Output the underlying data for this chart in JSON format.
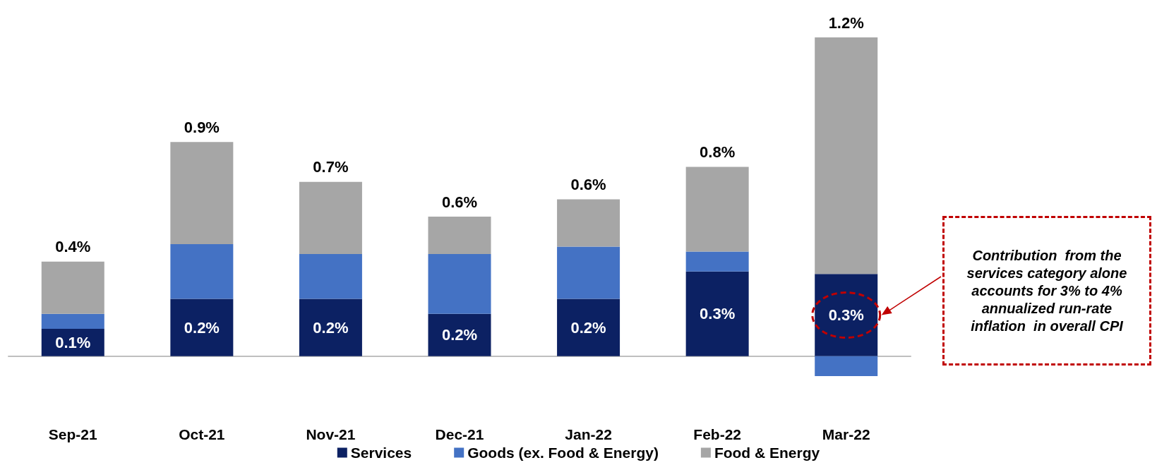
{
  "chart_data": {
    "type": "bar",
    "stacked": true,
    "tick_labels": "x",
    "categories": [
      "Sep-21",
      "Oct-21",
      "Nov-21",
      "Dec-21",
      "Jan-22",
      "Feb-22",
      "Mar-22"
    ],
    "series": [
      {
        "name": "Services",
        "color": "#0c2163",
        "values": [
          0.11,
          0.23,
          0.23,
          0.17,
          0.23,
          0.34,
          0.33
        ],
        "value_labels": [
          "0.1%",
          "0.2%",
          "0.2%",
          "0.2%",
          "0.2%",
          "0.3%",
          "0.3%"
        ]
      },
      {
        "name": "Goods (ex. Food & Energy)",
        "color": "#4472c4",
        "values": [
          0.06,
          0.22,
          0.18,
          0.24,
          0.21,
          0.08,
          -0.08
        ]
      },
      {
        "name": "Food & Energy",
        "color": "#a6a6a6",
        "values": [
          0.21,
          0.41,
          0.29,
          0.15,
          0.19,
          0.34,
          0.95
        ]
      }
    ],
    "totals": [
      "0.4%",
      "0.9%",
      "0.7%",
      "0.6%",
      "0.6%",
      "0.8%",
      "1.2%"
    ],
    "annotations": [
      "Contribution  from the services category alone accounts for 3% to 4% annualized run-rate inflation  in overall CPI"
    ],
    "legend": "bottom"
  }
}
